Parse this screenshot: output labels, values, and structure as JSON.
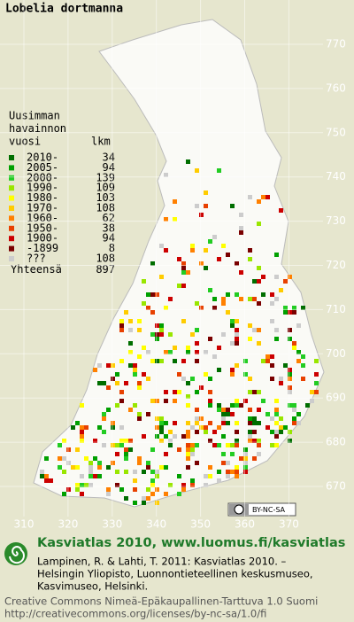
{
  "title": "Lobelia dortmanna",
  "legend": {
    "heading": [
      "Uusimman",
      "havainnon",
      "vuosi"
    ],
    "count_heading": "lkm",
    "items": [
      {
        "label": "2010-",
        "count": 34,
        "color": "#006e00"
      },
      {
        "label": "2005-",
        "count": 94,
        "color": "#00a000"
      },
      {
        "label": "2000-",
        "count": 139,
        "color": "#22cc22"
      },
      {
        "label": "1990-",
        "count": 109,
        "color": "#99e600"
      },
      {
        "label": "1980-",
        "count": 103,
        "color": "#ffff00"
      },
      {
        "label": "1970-",
        "count": 108,
        "color": "#ffcc00"
      },
      {
        "label": "1960-",
        "count": 62,
        "color": "#ff8000"
      },
      {
        "label": "1950-",
        "count": 38,
        "color": "#e84000"
      },
      {
        "label": "1900-",
        "count": 94,
        "color": "#cc0000"
      },
      {
        "label": "-1899",
        "count": 8,
        "color": "#7a0000"
      },
      {
        "label": "???",
        "count": 108,
        "color": "#cccccc"
      }
    ],
    "total_label": "Yhteensä",
    "total": 897
  },
  "y_ticks": [
    770,
    760,
    750,
    740,
    730,
    720,
    710,
    700,
    690,
    680,
    670
  ],
  "x_ticks": [
    310,
    320,
    330,
    340,
    350,
    360,
    370
  ],
  "badge": "BY-NC-SA",
  "footer": {
    "headline": "Kasviatlas 2010, www.luomus.fi/kasviatlas",
    "citation": [
      "Lampinen, R. & Lahti, T. 2011: Kasviatlas 2010. –",
      "Helsingin Yliopisto, Luonnontieteellinen keskusmuseo,",
      "Kasvimuseo, Helsinki."
    ],
    "license": [
      "Creative Commons Nimeä-Epäkaupallinen-Tarttuva 1.0 Suomi",
      "http://creativecommons.org/licenses/by-nc-sa/1.0/fi"
    ]
  }
}
